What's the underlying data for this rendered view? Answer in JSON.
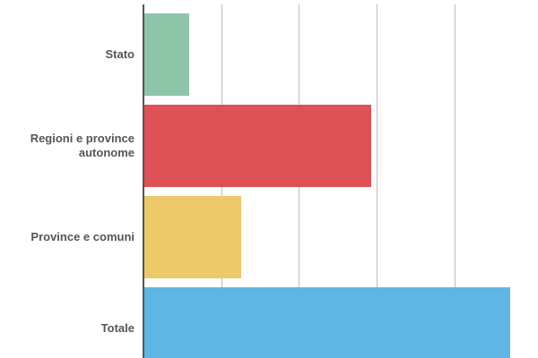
{
  "chart_data": {
    "type": "bar",
    "orientation": "horizontal",
    "title": "",
    "xlabel": "",
    "ylabel": "",
    "categories": [
      "Stato",
      "Regioni e province autonome",
      "Province e comuni",
      "Totale"
    ],
    "values": [
      0.58,
      2.92,
      1.25,
      4.71
    ],
    "colors": [
      "#8dc5a8",
      "#dd5157",
      "#edc96a",
      "#5fb5e3"
    ],
    "xlim": [
      0,
      5
    ],
    "gridlines_x": [
      1,
      2,
      3,
      4
    ],
    "tick_labels_visible": false,
    "legend": null,
    "grid": true
  },
  "labels": {
    "stato": "Stato",
    "regioni_line1": "Regioni e province",
    "regioni_line2": "autonome",
    "province": "Province e comuni",
    "totale": "Totale"
  }
}
